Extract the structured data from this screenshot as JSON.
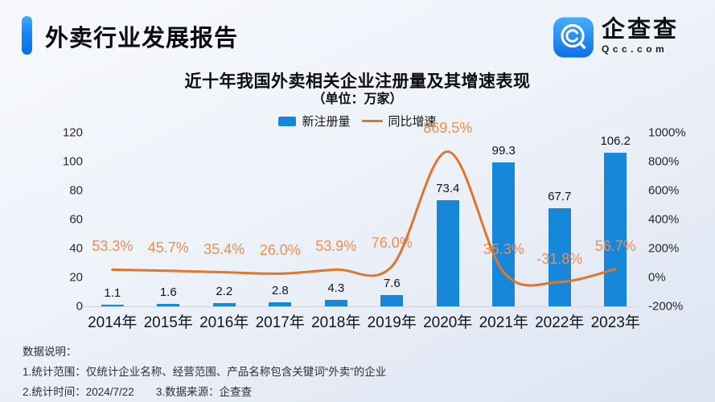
{
  "header": {
    "title": "外卖行业发展报告"
  },
  "logo": {
    "company": "企查查",
    "site": "Qcc.com"
  },
  "chart": {
    "title": "近十年我国外卖相关企业注册量及其增速表现",
    "subtitle": "（单位：万家）",
    "legend": [
      {
        "label": "新注册量"
      },
      {
        "label": "同比增速"
      }
    ]
  },
  "chart_data": {
    "type": "bar+line",
    "title": "近十年我国外卖相关企业注册量及其增速表现",
    "unit": "万家",
    "categories": [
      "2014年",
      "2015年",
      "2016年",
      "2017年",
      "2018年",
      "2019年",
      "2020年",
      "2021年",
      "2022年",
      "2023年"
    ],
    "series": [
      {
        "name": "新注册量",
        "type": "bar",
        "axis": "left",
        "values": [
          1.1,
          1.6,
          2.2,
          2.8,
          4.3,
          7.6,
          73.4,
          99.3,
          67.7,
          106.2
        ],
        "labels": [
          "1.1",
          "1.6",
          "2.2",
          "2.8",
          "4.3",
          "7.6",
          "73.4",
          "99.3",
          "67.7",
          "106.2"
        ]
      },
      {
        "name": "同比增速",
        "type": "line",
        "axis": "right",
        "values": [
          53.3,
          45.7,
          35.4,
          26.0,
          53.9,
          76.0,
          869.5,
          35.3,
          -31.8,
          56.7
        ],
        "labels": [
          "53.3%",
          "45.7%",
          "35.4%",
          "26.0%",
          "53.9%",
          "76.0%",
          "869.5%",
          "35.3%",
          "-31.8%",
          "56.7%"
        ]
      }
    ],
    "left_axis": {
      "ticks": [
        120,
        100,
        80,
        60,
        40,
        20,
        0
      ],
      "range": [
        0,
        120
      ]
    },
    "right_axis": {
      "ticks": [
        "1000%",
        "800%",
        "600%",
        "400%",
        "200%",
        "0%",
        "-200%"
      ],
      "range": [
        -200,
        1000
      ]
    },
    "legend_position": "top",
    "grid": false,
    "colors": {
      "bar": "#1787d9",
      "line": "#e0762e",
      "line_label": "#ef8f4e"
    }
  },
  "footer": {
    "heading": "数据说明：",
    "note1": "1.统计范围：仅统计企业名称、经营范围、产品名称包含关键词“外卖”的企业",
    "note2": "2.统计时间：2024/7/22　　3.数据来源：企查查"
  }
}
